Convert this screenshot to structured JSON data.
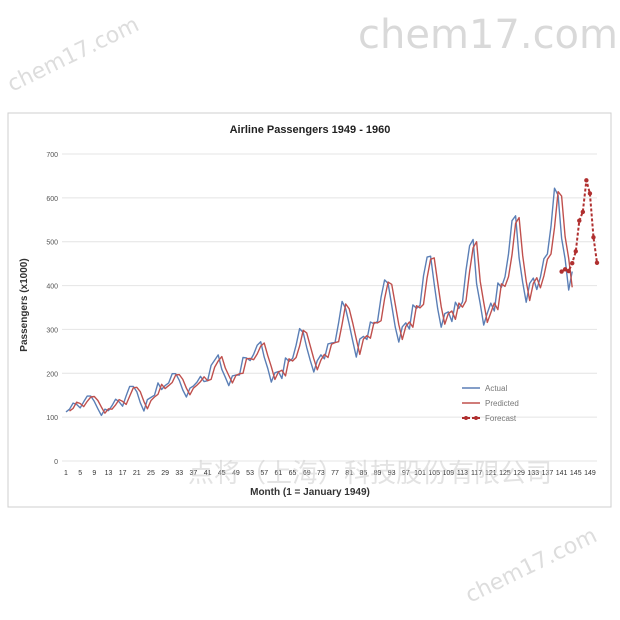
{
  "watermarks": {
    "brand_text": "chem17.com",
    "diagonal_texts": [
      "chem17.com",
      "chem17.com"
    ],
    "company_text": "点将（上海）科技股份有限公司"
  },
  "colors": {
    "actual": "#5b7fb6",
    "predicted": "#c0504d",
    "forecast": "#b03030",
    "watermark": "#d9d9d9",
    "grid": "#e4e4e4",
    "frame": "#cfcfcf"
  },
  "chart_data": {
    "type": "line",
    "title": "Airline Passengers 1949 - 1960",
    "xlabel": "Month (1 = January 1949)",
    "ylabel": "Passengers (x1000)",
    "xlim": [
      1,
      151
    ],
    "ylim": [
      0,
      700
    ],
    "yticks": [
      0,
      100,
      200,
      300,
      400,
      500,
      600,
      700
    ],
    "xticks": [
      1,
      5,
      9,
      13,
      17,
      21,
      25,
      29,
      33,
      37,
      41,
      45,
      49,
      53,
      57,
      61,
      65,
      69,
      73,
      77,
      81,
      85,
      89,
      93,
      97,
      101,
      105,
      109,
      113,
      117,
      121,
      125,
      129,
      133,
      137,
      141,
      145,
      149
    ],
    "grid": true,
    "legend_position": "bottom-right",
    "series": [
      {
        "name": "Actual",
        "x_start": 1,
        "values": [
          112,
          118,
          132,
          129,
          121,
          135,
          148,
          148,
          136,
          119,
          104,
          118,
          115,
          126,
          141,
          135,
          125,
          149,
          170,
          170,
          158,
          133,
          114,
          140,
          145,
          150,
          178,
          163,
          172,
          178,
          199,
          199,
          184,
          162,
          146,
          166,
          171,
          180,
          193,
          181,
          183,
          218,
          230,
          242,
          209,
          191,
          172,
          194,
          196,
          196,
          236,
          235,
          229,
          243,
          264,
          272,
          237,
          211,
          180,
          201,
          204,
          188,
          235,
          227,
          234,
          264,
          302,
          293,
          259,
          229,
          203,
          229,
          242,
          233,
          267,
          269,
          270,
          315,
          364,
          347,
          312,
          274,
          237,
          278,
          284,
          277,
          317,
          313,
          318,
          374,
          413,
          405,
          355,
          306,
          271,
          306,
          315,
          301,
          356,
          348,
          355,
          422,
          465,
          467,
          404,
          347,
          305,
          336,
          340,
          318,
          362,
          348,
          363,
          435,
          491,
          505,
          404,
          359,
          310,
          337,
          360,
          342,
          406,
          396,
          420,
          472,
          548,
          559,
          463,
          407,
          362,
          405,
          417,
          391,
          419,
          461,
          472,
          535,
          622,
          606,
          508,
          461,
          390,
          432
        ]
      },
      {
        "name": "Predicted",
        "x_start": 2,
        "values": [
          114,
          120,
          134,
          131,
          124,
          136,
          146,
          147,
          138,
          123,
          109,
          119,
          118,
          128,
          140,
          136,
          129,
          148,
          167,
          168,
          158,
          136,
          119,
          138,
          146,
          152,
          175,
          165,
          172,
          179,
          196,
          197,
          186,
          166,
          151,
          166,
          173,
          181,
          192,
          183,
          186,
          214,
          228,
          238,
          212,
          195,
          178,
          195,
          199,
          200,
          233,
          234,
          231,
          244,
          262,
          269,
          240,
          215,
          186,
          203,
          207,
          194,
          233,
          228,
          236,
          262,
          298,
          292,
          262,
          233,
          208,
          230,
          243,
          236,
          266,
          270,
          272,
          312,
          358,
          347,
          315,
          278,
          243,
          278,
          286,
          280,
          316,
          315,
          320,
          370,
          408,
          403,
          358,
          311,
          277,
          307,
          317,
          305,
          354,
          349,
          357,
          418,
          460,
          463,
          407,
          352,
          312,
          336,
          342,
          323,
          360,
          351,
          365,
          432,
          486,
          500,
          410,
          362,
          316,
          338,
          360,
          345,
          404,
          398,
          420,
          470,
          542,
          555,
          468,
          410,
          366,
          405,
          418,
          395,
          422,
          460,
          472,
          532,
          614,
          604,
          512,
          462,
          396
        ]
      },
      {
        "name": "Forecast",
        "x_start": 141,
        "values": [
          432,
          437,
          433,
          451,
          478,
          548,
          568,
          640,
          610,
          510,
          452
        ]
      }
    ]
  }
}
